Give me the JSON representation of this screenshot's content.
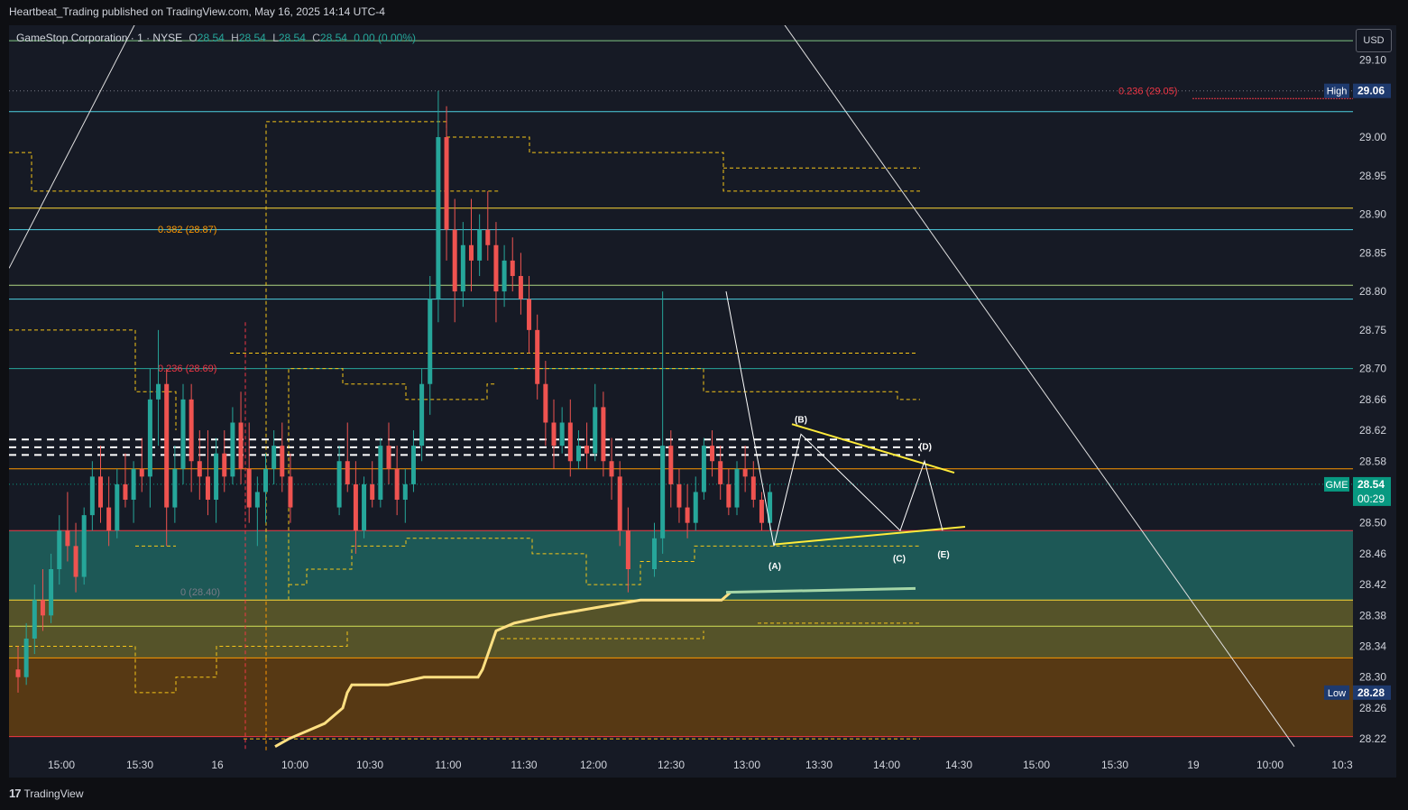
{
  "header": {
    "published_text": "Heartbeat_Trading published on TradingView.com, May 16, 2025 14:14 UTC-4"
  },
  "legend": {
    "symbol": "GameStop Corporation · 1 · NYSE",
    "o_label": "O",
    "o_value": "28.54",
    "h_label": "H",
    "h_value": "28.54",
    "l_label": "L",
    "l_value": "28.54",
    "c_label": "C",
    "c_value": "28.54",
    "change": "0.00 (0.00%)"
  },
  "currency_button": "USD",
  "footer": {
    "logo_text": "TradingView"
  },
  "colors": {
    "background": "#161a25",
    "up": "#26a69a",
    "down": "#ef5350",
    "dashed_level": "#f5c518",
    "vwap": "#ffe082",
    "wedge": "#ffeb3b",
    "zone_teal": "#1e5f5c",
    "zone_yellow": "#5c5a2a",
    "zone_orange": "#5e3d13"
  },
  "chart_data": {
    "type": "candlestick",
    "symbol": "GME",
    "interval": "1",
    "ylim": [
      28.205,
      29.145
    ],
    "y_ticks": [
      "29.10",
      "29.06",
      "29.00",
      "28.95",
      "28.90",
      "28.85",
      "28.80",
      "28.75",
      "28.70",
      "28.66",
      "28.62",
      "28.58",
      "28.54",
      "28.50",
      "28.46",
      "28.42",
      "28.38",
      "28.34",
      "28.30",
      "28.26",
      "28.22"
    ],
    "x_ticks": [
      "15:00",
      "15:30",
      "16",
      "10:00",
      "10:30",
      "11:00",
      "11:30",
      "12:00",
      "12:30",
      "13:00",
      "13:30",
      "14:00",
      "14:30",
      "15:00",
      "15:30",
      "19",
      "10:00",
      "10:3"
    ],
    "price_labels": [
      {
        "tag": "High",
        "value": "29.06",
        "price": 29.06,
        "color": "#1e3a6e"
      },
      {
        "tag": "GME",
        "value": "28.54",
        "time": "00:29",
        "price": 28.55,
        "color": "#089981"
      },
      {
        "tag": "Low",
        "value": "28.28",
        "price": 28.28,
        "color": "#1e3a6e"
      }
    ],
    "fib_levels": [
      {
        "label": "0.236 (29.05)",
        "price": 29.05,
        "color": "#f23645"
      },
      {
        "label": "0.382 (28.87)",
        "price": 28.87,
        "color": "#ff9800"
      },
      {
        "label": "0.236 (28.69)",
        "price": 28.69,
        "color": "#f23645"
      },
      {
        "label": "0 (28.40)",
        "price": 28.4,
        "color": "#787b86"
      }
    ],
    "horizontal_lines": [
      {
        "price": 29.125,
        "color": "#81c784"
      },
      {
        "price": 29.033,
        "color": "#4dd0e1"
      },
      {
        "price": 28.908,
        "color": "#fdd835"
      },
      {
        "price": 28.88,
        "color": "#4dd0e1"
      },
      {
        "price": 28.808,
        "color": "#aed581"
      },
      {
        "price": 28.79,
        "color": "#4dd0e1"
      },
      {
        "price": 28.7,
        "color": "#26a69a"
      },
      {
        "price": 28.57,
        "color": "#ff9800"
      },
      {
        "price": 28.49,
        "color": "#f23645"
      },
      {
        "price": 28.4,
        "color": "#fdd835"
      },
      {
        "price": 28.366,
        "color": "#d4e157"
      },
      {
        "price": 28.325,
        "color": "#ff9800"
      },
      {
        "price": 28.223,
        "color": "#f23645"
      }
    ],
    "zones": [
      {
        "from": 28.49,
        "to": 28.4,
        "color": "#1e5f5c"
      },
      {
        "from": 28.4,
        "to": 28.325,
        "color": "#5c5a2a"
      },
      {
        "from": 28.325,
        "to": 28.223,
        "color": "#5e3d13"
      }
    ],
    "wave_labels": [
      "(A)",
      "(B)",
      "(C)",
      "(D)",
      "(E)"
    ],
    "candles": [
      {
        "t": 0,
        "o": 28.31,
        "h": 28.34,
        "l": 28.28,
        "c": 28.3
      },
      {
        "t": 1,
        "o": 28.3,
        "h": 28.37,
        "l": 28.29,
        "c": 28.35
      },
      {
        "t": 2,
        "o": 28.35,
        "h": 28.42,
        "l": 28.33,
        "c": 28.4
      },
      {
        "t": 3,
        "o": 28.4,
        "h": 28.44,
        "l": 28.36,
        "c": 28.38
      },
      {
        "t": 4,
        "o": 28.38,
        "h": 28.46,
        "l": 28.37,
        "c": 28.44
      },
      {
        "t": 5,
        "o": 28.44,
        "h": 28.51,
        "l": 28.42,
        "c": 28.49
      },
      {
        "t": 6,
        "o": 28.49,
        "h": 28.54,
        "l": 28.45,
        "c": 28.47
      },
      {
        "t": 7,
        "o": 28.47,
        "h": 28.5,
        "l": 28.41,
        "c": 28.43
      },
      {
        "t": 8,
        "o": 28.43,
        "h": 28.52,
        "l": 28.42,
        "c": 28.51
      },
      {
        "t": 9,
        "o": 28.51,
        "h": 28.58,
        "l": 28.49,
        "c": 28.56
      },
      {
        "t": 10,
        "o": 28.56,
        "h": 28.6,
        "l": 28.5,
        "c": 28.52
      },
      {
        "t": 11,
        "o": 28.52,
        "h": 28.56,
        "l": 28.47,
        "c": 28.49
      },
      {
        "t": 12,
        "o": 28.49,
        "h": 28.57,
        "l": 28.48,
        "c": 28.55
      },
      {
        "t": 13,
        "o": 28.55,
        "h": 28.59,
        "l": 28.52,
        "c": 28.53
      },
      {
        "t": 14,
        "o": 28.53,
        "h": 28.58,
        "l": 28.5,
        "c": 28.57
      },
      {
        "t": 15,
        "o": 28.57,
        "h": 28.61,
        "l": 28.54,
        "c": 28.56
      },
      {
        "t": 16,
        "o": 28.56,
        "h": 28.7,
        "l": 28.52,
        "c": 28.66
      },
      {
        "t": 17,
        "o": 28.66,
        "h": 28.75,
        "l": 28.6,
        "c": 28.68
      },
      {
        "t": 18,
        "o": 28.68,
        "h": 28.7,
        "l": 28.47,
        "c": 28.52
      },
      {
        "t": 19,
        "o": 28.52,
        "h": 28.6,
        "l": 28.5,
        "c": 28.57
      },
      {
        "t": 20,
        "o": 28.57,
        "h": 28.68,
        "l": 28.55,
        "c": 28.66
      },
      {
        "t": 21,
        "o": 28.66,
        "h": 28.68,
        "l": 28.54,
        "c": 28.58
      },
      {
        "t": 22,
        "o": 28.58,
        "h": 28.62,
        "l": 28.53,
        "c": 28.56
      },
      {
        "t": 23,
        "o": 28.56,
        "h": 28.62,
        "l": 28.51,
        "c": 28.53
      },
      {
        "t": 24,
        "o": 28.53,
        "h": 28.61,
        "l": 28.5,
        "c": 28.59
      },
      {
        "t": 25,
        "o": 28.59,
        "h": 28.62,
        "l": 28.54,
        "c": 28.56
      },
      {
        "t": 26,
        "o": 28.56,
        "h": 28.65,
        "l": 28.55,
        "c": 28.63
      },
      {
        "t": 27,
        "o": 28.63,
        "h": 28.67,
        "l": 28.55,
        "c": 28.57
      },
      {
        "t": 28,
        "o": 28.57,
        "h": 28.63,
        "l": 28.5,
        "c": 28.52
      },
      {
        "t": 29,
        "o": 28.52,
        "h": 28.56,
        "l": 28.47,
        "c": 28.54
      },
      {
        "t": 30,
        "o": 28.54,
        "h": 28.59,
        "l": 28.5,
        "c": 28.57
      },
      {
        "t": 31,
        "o": 28.57,
        "h": 28.62,
        "l": 28.55,
        "c": 28.6
      },
      {
        "t": 32,
        "o": 28.6,
        "h": 28.63,
        "l": 28.54,
        "c": 28.56
      },
      {
        "t": 33,
        "o": 28.56,
        "h": 28.59,
        "l": 28.5,
        "c": 28.52
      },
      {
        "t": 34,
        "o": 28.52,
        "h": 28.6,
        "l": 28.51,
        "c": 28.58
      },
      {
        "t": 35,
        "o": 28.58,
        "h": 28.63,
        "l": 28.54,
        "c": 28.55
      },
      {
        "t": 36,
        "o": 28.55,
        "h": 28.58,
        "l": 28.46,
        "c": 28.49
      },
      {
        "t": 37,
        "o": 28.49,
        "h": 28.56,
        "l": 28.48,
        "c": 28.55
      },
      {
        "t": 38,
        "o": 28.55,
        "h": 28.58,
        "l": 28.52,
        "c": 28.53
      },
      {
        "t": 39,
        "o": 28.53,
        "h": 28.61,
        "l": 28.52,
        "c": 28.6
      },
      {
        "t": 40,
        "o": 28.6,
        "h": 28.63,
        "l": 28.55,
        "c": 28.57
      },
      {
        "t": 41,
        "o": 28.57,
        "h": 28.6,
        "l": 28.51,
        "c": 28.53
      },
      {
        "t": 42,
        "o": 28.53,
        "h": 28.57,
        "l": 28.5,
        "c": 28.55
      },
      {
        "t": 43,
        "o": 28.55,
        "h": 28.62,
        "l": 28.54,
        "c": 28.6
      },
      {
        "t": 44,
        "o": 28.6,
        "h": 28.7,
        "l": 28.58,
        "c": 28.68
      },
      {
        "t": 45,
        "o": 28.68,
        "h": 28.82,
        "l": 28.64,
        "c": 28.79
      },
      {
        "t": 46,
        "o": 28.79,
        "h": 29.06,
        "l": 28.76,
        "c": 29.0
      },
      {
        "t": 47,
        "o": 29.0,
        "h": 29.04,
        "l": 28.84,
        "c": 28.88
      },
      {
        "t": 48,
        "o": 28.88,
        "h": 28.92,
        "l": 28.76,
        "c": 28.8
      },
      {
        "t": 49,
        "o": 28.8,
        "h": 28.89,
        "l": 28.78,
        "c": 28.86
      },
      {
        "t": 50,
        "o": 28.86,
        "h": 28.92,
        "l": 28.8,
        "c": 28.84
      },
      {
        "t": 51,
        "o": 28.84,
        "h": 28.9,
        "l": 28.82,
        "c": 28.88
      },
      {
        "t": 52,
        "o": 28.88,
        "h": 28.93,
        "l": 28.84,
        "c": 28.86
      },
      {
        "t": 53,
        "o": 28.86,
        "h": 28.89,
        "l": 28.76,
        "c": 28.8
      },
      {
        "t": 54,
        "o": 28.8,
        "h": 28.86,
        "l": 28.78,
        "c": 28.84
      },
      {
        "t": 55,
        "o": 28.84,
        "h": 28.87,
        "l": 28.8,
        "c": 28.82
      },
      {
        "t": 56,
        "o": 28.82,
        "h": 28.85,
        "l": 28.77,
        "c": 28.79
      },
      {
        "t": 57,
        "o": 28.79,
        "h": 28.82,
        "l": 28.72,
        "c": 28.75
      },
      {
        "t": 58,
        "o": 28.75,
        "h": 28.77,
        "l": 28.66,
        "c": 28.68
      },
      {
        "t": 59,
        "o": 28.68,
        "h": 28.71,
        "l": 28.6,
        "c": 28.63
      },
      {
        "t": 60,
        "o": 28.63,
        "h": 28.66,
        "l": 28.57,
        "c": 28.6
      },
      {
        "t": 61,
        "o": 28.6,
        "h": 28.65,
        "l": 28.59,
        "c": 28.63
      },
      {
        "t": 62,
        "o": 28.63,
        "h": 28.66,
        "l": 28.56,
        "c": 28.58
      },
      {
        "t": 63,
        "o": 28.58,
        "h": 28.62,
        "l": 28.57,
        "c": 28.6
      },
      {
        "t": 64,
        "o": 28.6,
        "h": 28.63,
        "l": 28.57,
        "c": 28.59
      },
      {
        "t": 65,
        "o": 28.59,
        "h": 28.68,
        "l": 28.58,
        "c": 28.65
      },
      {
        "t": 66,
        "o": 28.65,
        "h": 28.67,
        "l": 28.56,
        "c": 28.58
      },
      {
        "t": 67,
        "o": 28.58,
        "h": 28.61,
        "l": 28.53,
        "c": 28.56
      },
      {
        "t": 68,
        "o": 28.56,
        "h": 28.58,
        "l": 28.47,
        "c": 28.49
      },
      {
        "t": 69,
        "o": 28.49,
        "h": 28.52,
        "l": 28.41,
        "c": 28.44
      },
      {
        "t": 70,
        "o": 28.44,
        "h": 28.5,
        "l": 28.43,
        "c": 28.48
      },
      {
        "t": 71,
        "o": 28.48,
        "h": 28.8,
        "l": 28.46,
        "c": 28.6
      },
      {
        "t": 72,
        "o": 28.6,
        "h": 28.62,
        "l": 28.52,
        "c": 28.55
      },
      {
        "t": 73,
        "o": 28.55,
        "h": 28.57,
        "l": 28.5,
        "c": 28.52
      },
      {
        "t": 74,
        "o": 28.52,
        "h": 28.55,
        "l": 28.48,
        "c": 28.5
      },
      {
        "t": 75,
        "o": 28.5,
        "h": 28.56,
        "l": 28.49,
        "c": 28.54
      },
      {
        "t": 76,
        "o": 28.54,
        "h": 28.61,
        "l": 28.53,
        "c": 28.6
      },
      {
        "t": 77,
        "o": 28.6,
        "h": 28.62,
        "l": 28.56,
        "c": 28.58
      },
      {
        "t": 78,
        "o": 28.58,
        "h": 28.6,
        "l": 28.53,
        "c": 28.55
      },
      {
        "t": 79,
        "o": 28.55,
        "h": 28.57,
        "l": 28.51,
        "c": 28.52
      },
      {
        "t": 80,
        "o": 28.52,
        "h": 28.58,
        "l": 28.51,
        "c": 28.57
      },
      {
        "t": 81,
        "o": 28.57,
        "h": 28.6,
        "l": 28.54,
        "c": 28.56
      },
      {
        "t": 82,
        "o": 28.56,
        "h": 28.58,
        "l": 28.52,
        "c": 28.53
      },
      {
        "t": 83,
        "o": 28.53,
        "h": 28.54,
        "l": 28.49,
        "c": 28.5
      },
      {
        "t": 84,
        "o": 28.5,
        "h": 28.55,
        "l": 28.49,
        "c": 28.54
      }
    ],
    "vwap_price_path": [
      28.21,
      28.22,
      28.23,
      28.24,
      28.26,
      28.28,
      28.29,
      28.29,
      28.3,
      28.3,
      28.31,
      28.36,
      28.37,
      28.38,
      28.39,
      28.4,
      28.4,
      28.4,
      28.41,
      28.41
    ]
  }
}
